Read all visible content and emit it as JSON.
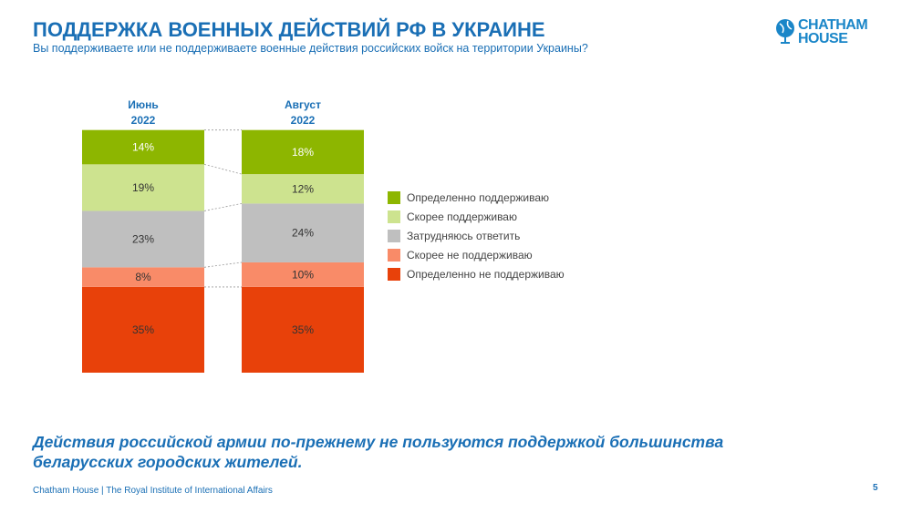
{
  "header": {
    "title": "ПОДДЕРЖКА ВОЕННЫХ ДЕЙСТВИЙ РФ В УКРАИНЕ",
    "subtitle": "Вы поддерживаете или не поддерживаете военные действия российских войск на территории Украины?"
  },
  "logo": {
    "line1": "CHATHAM",
    "line2": "HOUSE",
    "icon": "globe-icon"
  },
  "chart_data": {
    "type": "bar",
    "stacked": true,
    "unit": "%",
    "categories": [
      "Июнь 2022",
      "Август 2022"
    ],
    "category_lines": [
      [
        "Июнь",
        "2022"
      ],
      [
        "Август",
        "2022"
      ]
    ],
    "series": [
      {
        "name": "Определенно не поддерживаю",
        "values": [
          35,
          35
        ],
        "color": "#e8410a"
      },
      {
        "name": "Скорее не поддерживаю",
        "values": [
          8,
          10
        ],
        "color": "#f98b68"
      },
      {
        "name": "Затрудняюсь ответить",
        "values": [
          23,
          24
        ],
        "color": "#bfbfbf"
      },
      {
        "name": "Скорее поддерживаю",
        "values": [
          19,
          12
        ],
        "color": "#cde38f"
      },
      {
        "name": "Определенно поддерживаю",
        "values": [
          14,
          18
        ],
        "color": "#8db600"
      }
    ],
    "legend_order": [
      "Определенно поддерживаю",
      "Скорее поддерживаю",
      "Затрудняюсь ответить",
      "Скорее не поддерживаю",
      "Определенно не поддерживаю"
    ],
    "legend_placement": "right",
    "connector_lines": true,
    "grid": false
  },
  "conclusion": [
    "Действия российской армии по-прежнему не пользуются поддержкой большинства",
    "беларусских городских жителей."
  ],
  "footer": {
    "text": "Chatham House  |  The Royal Institute of International Affairs",
    "page": "5"
  }
}
